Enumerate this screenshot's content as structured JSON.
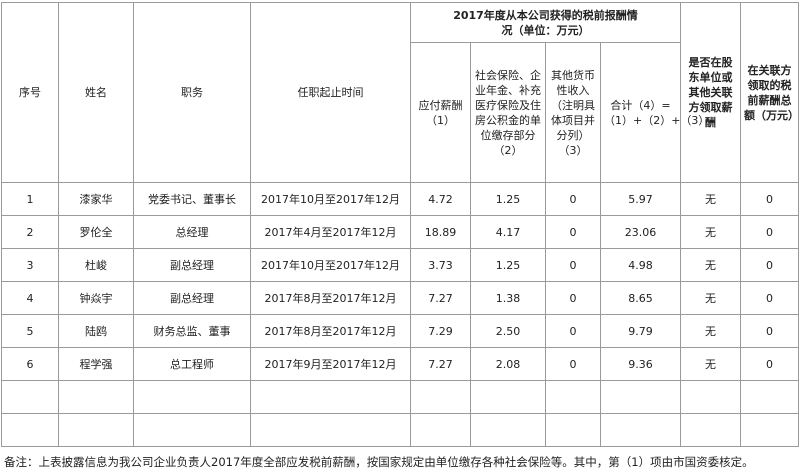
{
  "header": {
    "seq": "序号",
    "name": "姓名",
    "position": "职务",
    "term": "任职起止时间",
    "group": "2017年度从本公司获得的税前报酬情况（单位：万元）",
    "payable": "应付薪酬（1）",
    "social": "社会保险、企业年金、补充医疗保险及住房公积金的单位缴存部分（2）",
    "other": "其他货币性收入（注明具体项目并分列）（3）",
    "total": "合计（4）=（1）+（2）+（3）",
    "related": "是否在股东单位或其他关联方领取薪酬",
    "related_amount": "在关联方领取的税前薪酬总额（万元）"
  },
  "table": {
    "rows": [
      [
        "1",
        "漆家华",
        "党委书记、董事长",
        "2017年10月至2017年12月",
        "4.72",
        "1.25",
        "0",
        "5.97",
        "无",
        "0"
      ],
      [
        "2",
        "罗伦全",
        "总经理",
        "2017年4月至2017年12月",
        "18.89",
        "4.17",
        "0",
        "23.06",
        "无",
        "0"
      ],
      [
        "3",
        "杜峻",
        "副总经理",
        "2017年10月至2017年12月",
        "3.73",
        "1.25",
        "0",
        "4.98",
        "无",
        "0"
      ],
      [
        "4",
        "钟焱宇",
        "副总经理",
        "2017年8月至2017年12月",
        "7.27",
        "1.38",
        "0",
        "8.65",
        "无",
        "0"
      ],
      [
        "5",
        "陆鸥",
        "财务总监、董事",
        "2017年8月至2017年12月",
        "7.29",
        "2.50",
        "0",
        "9.79",
        "无",
        "0"
      ],
      [
        "6",
        "程学强",
        "总工程师",
        "2017年9月至2017年12月",
        "7.27",
        "2.08",
        "0",
        "9.36",
        "无",
        "0"
      ]
    ]
  },
  "footnote": "备注：上表披露信息为我公司企业负责人2017年度全部应发税前薪酬，按国家规定由单位缴存各种社会保险等。其中，第（1）项由市国资委核定。"
}
